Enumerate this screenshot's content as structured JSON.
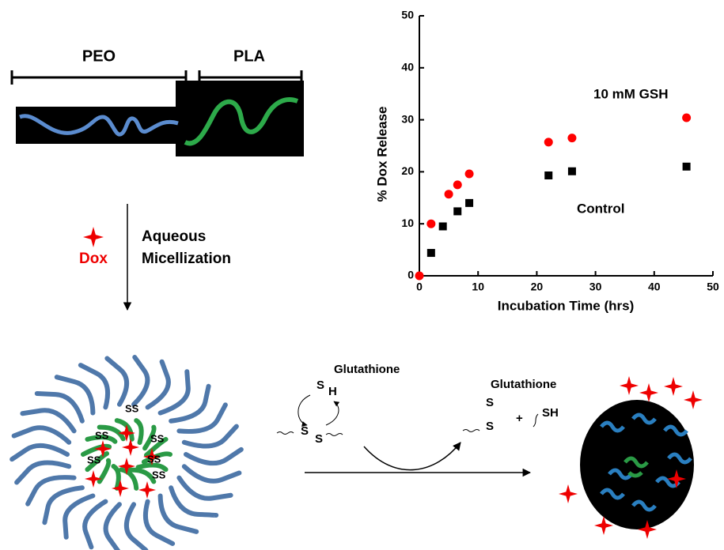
{
  "chart_data": {
    "type": "scatter",
    "x_label": "Incubation Time (hrs)",
    "y_label": "% Dox Release",
    "xlim": [
      0,
      50
    ],
    "ylim": [
      0,
      50
    ],
    "xticks": [
      0,
      10,
      20,
      30,
      40,
      50
    ],
    "yticks": [
      0,
      10,
      20,
      30,
      40,
      50
    ],
    "annotations": [
      "10 mM GSH",
      "Control"
    ],
    "series": [
      {
        "name": "10 mM GSH",
        "color": "#ff0000",
        "marker": "circle",
        "x": [
          0,
          2,
          5,
          6.5,
          8.5,
          22,
          26,
          45.5
        ],
        "values": [
          0,
          10,
          15.7,
          17.5,
          19.6,
          25.7,
          26.5,
          30.4
        ]
      },
      {
        "name": "Control",
        "color": "#000000",
        "marker": "square",
        "x": [
          2,
          4,
          6.5,
          8.5,
          22,
          26,
          45.5
        ],
        "values": [
          4.4,
          9.5,
          12.4,
          14,
          19.3,
          20.1,
          21
        ]
      }
    ]
  },
  "diagram": {
    "blocks": [
      "PEO",
      "PLA"
    ],
    "drug": "Dox",
    "step": [
      "Aqueous",
      "Micellization"
    ],
    "core_bonds": [
      "SS",
      "SS",
      "SS",
      "SS",
      "SS",
      "SS"
    ],
    "reactant": {
      "name": "Glutathione",
      "s": "S",
      "h": "H",
      "disulfide": [
        "S",
        "S"
      ]
    },
    "product": {
      "name": "Glutathione",
      "disulfide": [
        "S",
        "S"
      ],
      "plus": "+",
      "thiol": "SH"
    }
  }
}
